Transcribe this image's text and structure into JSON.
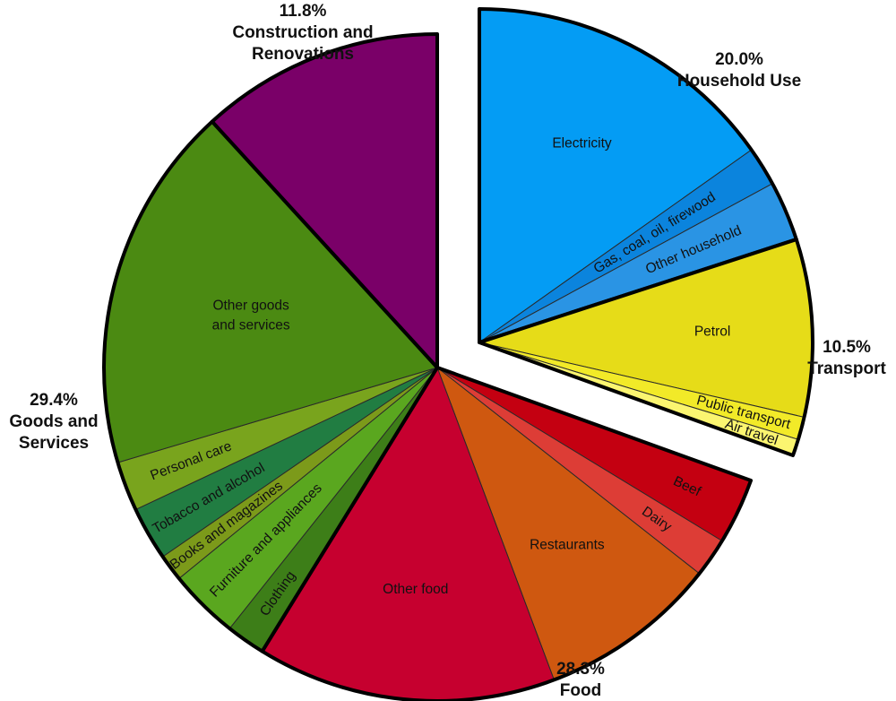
{
  "chart_data": {
    "type": "pie",
    "title": "",
    "groups": [
      {
        "name": "Household Use",
        "percent_label": "20.0%",
        "value": 20.0,
        "exploded": true,
        "slices": [
          {
            "label": "Electricity",
            "value": 15.2,
            "color": "#049cf4"
          },
          {
            "label": "Gas, coal, oil, firewood",
            "value": 1.9,
            "color": "#0b84dd"
          },
          {
            "label": "Other household",
            "value": 2.9,
            "color": "#2a94e4"
          }
        ]
      },
      {
        "name": "Transport",
        "percent_label": "10.5%",
        "value": 10.5,
        "exploded": true,
        "slices": [
          {
            "label": "Petrol",
            "value": 8.6,
            "color": "#e6dc18"
          },
          {
            "label": "Public transport",
            "value": 1.1,
            "color": "#f2ea28"
          },
          {
            "label": "Air travel",
            "value": 0.8,
            "color": "#fbf570"
          }
        ]
      },
      {
        "name": "Food",
        "percent_label": "28.3%",
        "value": 28.3,
        "exploded": false,
        "slices": [
          {
            "label": "Beef",
            "value": 3.2,
            "color": "#c40011"
          },
          {
            "label": "Dairy",
            "value": 1.9,
            "color": "#dd3d36"
          },
          {
            "label": "Restaurants",
            "value": 8.7,
            "color": "#cf5810"
          },
          {
            "label": "Other food",
            "value": 14.5,
            "color": "#c6002f"
          }
        ]
      },
      {
        "name": "Goods and Services",
        "percent_label": "29.4%",
        "value": 29.4,
        "exploded": false,
        "slices": [
          {
            "label": "Clothing",
            "value": 1.9,
            "color": "#3d7e18"
          },
          {
            "label": "Furniture and appliances",
            "value": 3.4,
            "color": "#5aa71f"
          },
          {
            "label": "Books and magazines",
            "value": 1.3,
            "color": "#7c9a1a"
          },
          {
            "label": "Tobacco and alcohol",
            "value": 2.6,
            "color": "#217d42"
          },
          {
            "label": "Personal care",
            "value": 2.4,
            "color": "#79a41d"
          },
          {
            "label": "Other goods and services",
            "value": 17.8,
            "color": "#4b8a12"
          }
        ]
      },
      {
        "name": "Construction and Renovations",
        "percent_label": "11.8%",
        "value": 11.8,
        "exploded": false,
        "slices": [
          {
            "label": "",
            "value": 11.8,
            "color": "#7a0068"
          }
        ]
      }
    ],
    "legend": "none",
    "grid": false
  }
}
